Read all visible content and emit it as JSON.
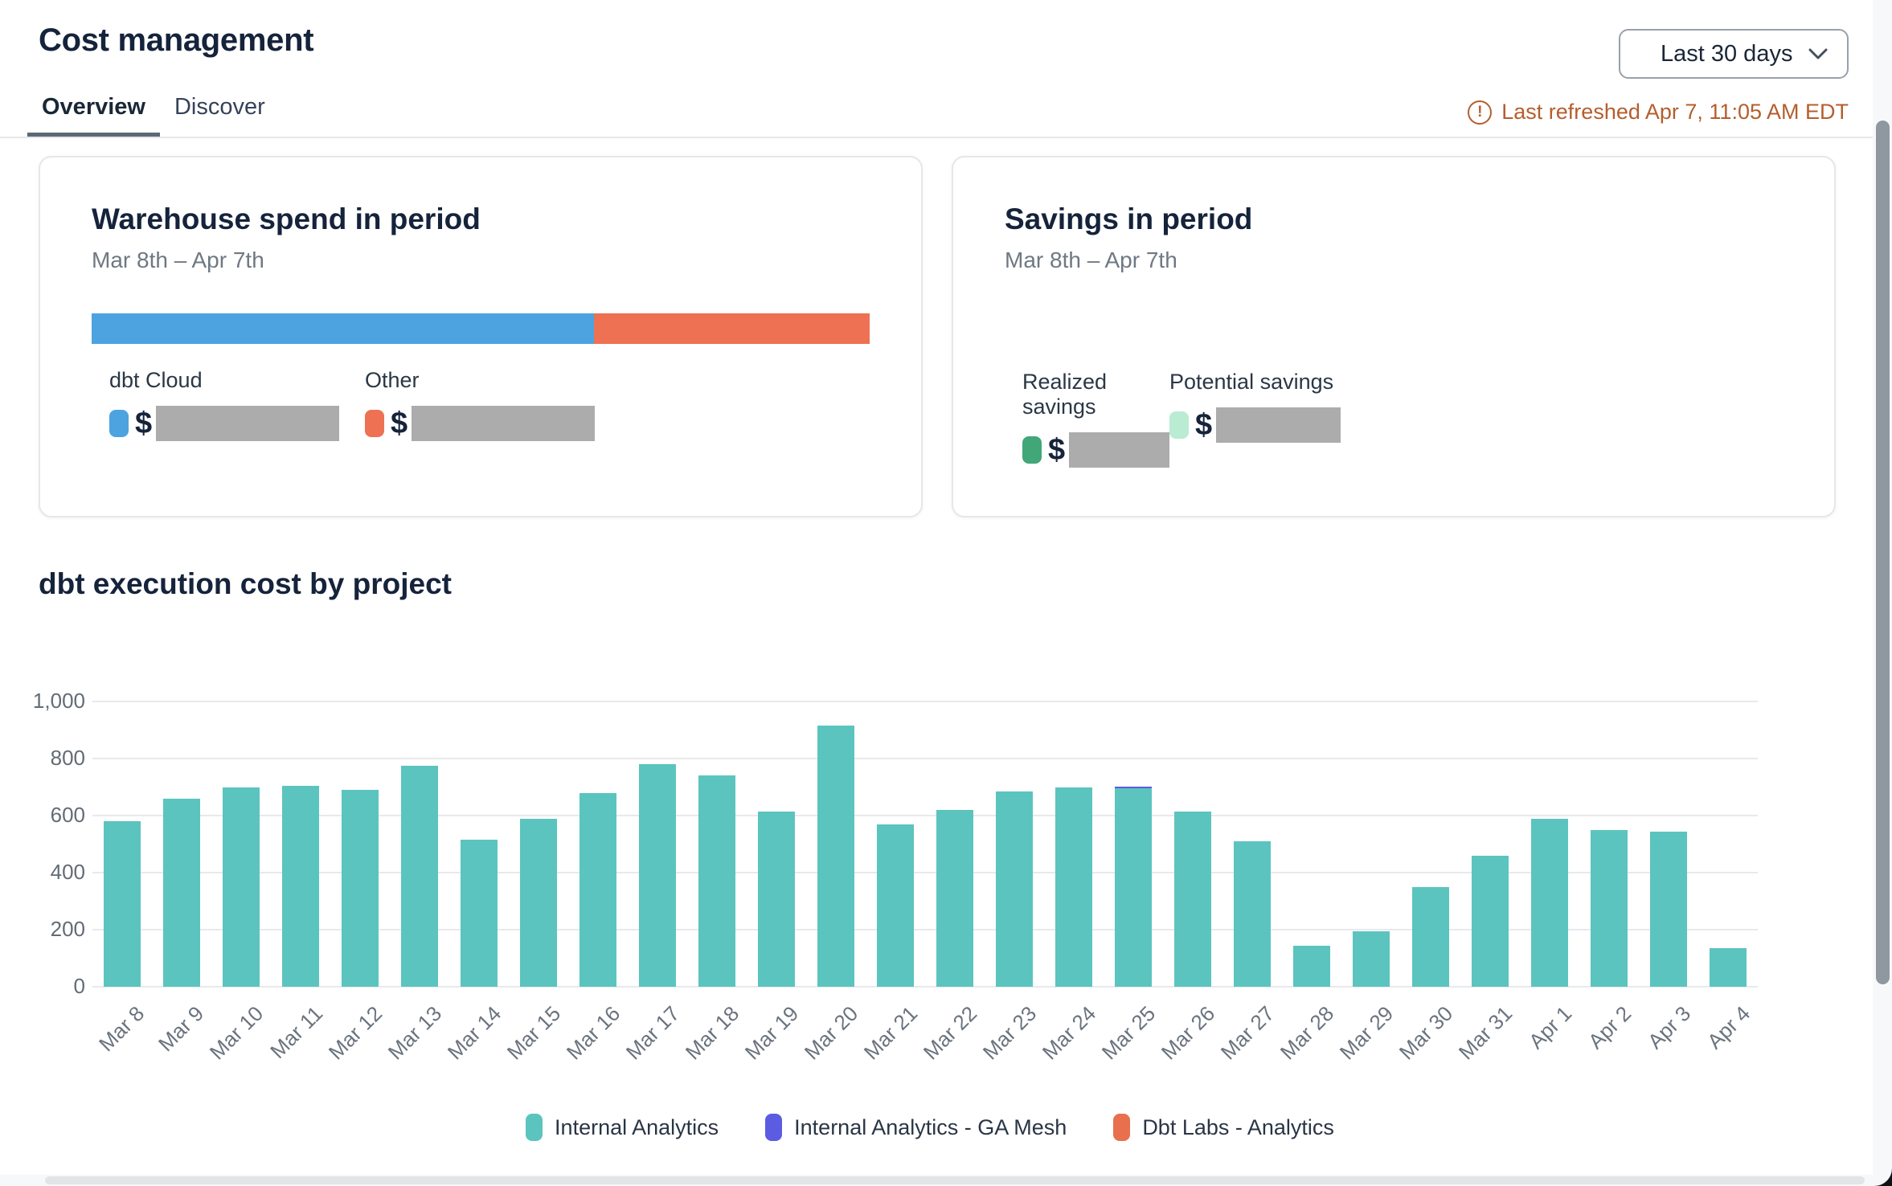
{
  "header": {
    "title": "Cost management",
    "period_selector": {
      "value": "Last 30 days",
      "icon": "chevron-down-icon"
    },
    "refresh": {
      "icon": "alert-circle-icon",
      "text": "Last refreshed Apr 7, 11:05 AM EDT",
      "color": "#B45E2E"
    },
    "tabs": [
      {
        "label": "Overview",
        "active": true
      },
      {
        "label": "Discover",
        "active": false
      }
    ]
  },
  "cards": {
    "warehouse_spend": {
      "title": "Warehouse spend in period",
      "date_range": "Mar 8th – Apr 7th",
      "stacked_bar": [
        {
          "label": "dbt Cloud",
          "color": "#4CA3E0",
          "percent": 64.6
        },
        {
          "label": "Other",
          "color": "#ED7152",
          "percent": 35.4
        }
      ],
      "stats": [
        {
          "label": "dbt Cloud",
          "swatch_color": "#4CA3E0",
          "currency": "$",
          "value_redacted": true
        },
        {
          "label": "Other",
          "swatch_color": "#ED7152",
          "currency": "$",
          "value_redacted": true
        }
      ]
    },
    "savings": {
      "title": "Savings in period",
      "date_range": "Mar 8th – Apr 7th",
      "stats": [
        {
          "label": "Realized savings",
          "swatch_color": "#41A678",
          "currency": "$",
          "value_redacted": true
        },
        {
          "label": "Potential savings",
          "swatch_color": "#B9ECD3",
          "currency": "$",
          "value_redacted": true
        }
      ]
    }
  },
  "chart_section": {
    "title": "dbt execution cost by project"
  },
  "chart_data": {
    "type": "bar",
    "stacked": true,
    "title": "dbt execution cost by project",
    "categories": [
      "Mar 8",
      "Mar 9",
      "Mar 10",
      "Mar 11",
      "Mar 12",
      "Mar 13",
      "Mar 14",
      "Mar 15",
      "Mar 16",
      "Mar 17",
      "Mar 18",
      "Mar 19",
      "Mar 20",
      "Mar 21",
      "Mar 22",
      "Mar 23",
      "Mar 24",
      "Mar 25",
      "Mar 26",
      "Mar 27",
      "Mar 28",
      "Mar 29",
      "Mar 30",
      "Mar 31",
      "Apr 1",
      "Apr 2",
      "Apr 3",
      "Apr 4"
    ],
    "series": [
      {
        "name": "Internal Analytics",
        "color": "#5BC4BF",
        "values": [
          580,
          660,
          700,
          705,
          690,
          775,
          515,
          590,
          680,
          780,
          740,
          615,
          915,
          570,
          620,
          685,
          700,
          695,
          615,
          510,
          145,
          195,
          350,
          460,
          590,
          550,
          545,
          135
        ]
      },
      {
        "name": "Internal Analytics - GA Mesh",
        "color": "#5B5CE2",
        "values": [
          0,
          0,
          0,
          0,
          0,
          0,
          0,
          0,
          0,
          0,
          0,
          0,
          0,
          0,
          0,
          0,
          0,
          6,
          0,
          0,
          0,
          0,
          0,
          0,
          0,
          0,
          0,
          0
        ]
      },
      {
        "name": "Dbt Labs - Analytics",
        "color": "#E8704E",
        "values": [
          0,
          0,
          0,
          0,
          0,
          0,
          0,
          0,
          0,
          0,
          0,
          0,
          0,
          0,
          0,
          0,
          0,
          0,
          0,
          0,
          0,
          0,
          0,
          0,
          0,
          0,
          0,
          0
        ]
      }
    ],
    "xlabel": "",
    "ylabel": "",
    "ylim": [
      0,
      1000
    ],
    "yticks": [
      {
        "value": 0,
        "label": "0"
      },
      {
        "value": 200,
        "label": "200"
      },
      {
        "value": 400,
        "label": "400"
      },
      {
        "value": 600,
        "label": "600"
      },
      {
        "value": 800,
        "label": "800"
      },
      {
        "value": 1000,
        "label": "1,000"
      }
    ],
    "grid": true,
    "legend_position": "bottom",
    "x_label_rotation": -45
  }
}
